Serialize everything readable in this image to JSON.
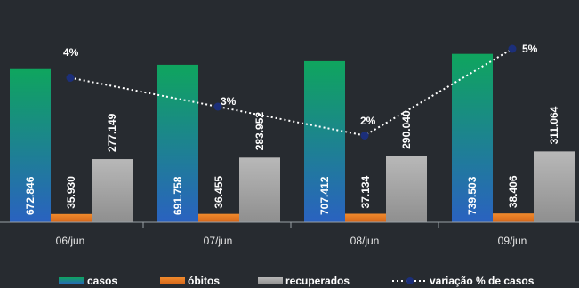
{
  "chart_data": {
    "type": "bar",
    "categories": [
      "06/jun",
      "07/jun",
      "08/jun",
      "09/jun"
    ],
    "series": [
      {
        "name": "casos",
        "values": [
          672846,
          691758,
          707412,
          739503
        ],
        "labels": [
          "672.846",
          "691.758",
          "707.412",
          "739.503"
        ],
        "color": "#13a072"
      },
      {
        "name": "óbitos",
        "values": [
          35930,
          36455,
          37134,
          38406
        ],
        "labels": [
          "35.930",
          "36.455",
          "37.134",
          "38.406"
        ],
        "color": "#e0751c"
      },
      {
        "name": "recuperados",
        "values": [
          277149,
          283952,
          290040,
          311064
        ],
        "labels": [
          "277.149",
          "283.952",
          "290.040",
          "311.064"
        ],
        "color": "#a9a9a9"
      }
    ],
    "line_series": {
      "name": "variação % de casos",
      "values": [
        4,
        3,
        2,
        5
      ],
      "labels": [
        "4%",
        "3%",
        "2%",
        "5%"
      ],
      "color": "#1c2f7a"
    },
    "gradient_colors": {
      "casos_top": "#0fa55e",
      "casos_bottom": "#2a62c0",
      "recuperados_top": "#b8b8b8",
      "recuperados_bottom": "#8f8f8f"
    },
    "title": "",
    "xlabel": "",
    "ylabel": "",
    "legend_position": "bottom",
    "grid": false
  }
}
